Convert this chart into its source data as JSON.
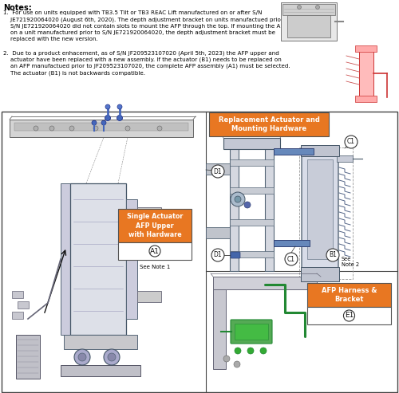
{
  "bg_color": "#ffffff",
  "orange_color": "#E87722",
  "notes_title": "Notes:",
  "note1_prefix": "1.",
  "note1_body": "For use on units equipped with TB3.5 Tilt or TB3 REAC Lift manufactured on or after S/N JE721920064020 (August 6th, 2020). The depth adjustment bracket on units manufactued prior to S/N JE721920064020 did not contain slots to mount the AFP through the top. If mounting the AFP on a unit manufactured prior to S/N JE721920064020, the depth adjustment bracket must be replaced with the new version.",
  "note2_prefix": "2.",
  "note2_body": "Due to a product enhacement, as of S/N JF209523107020 (April 5th, 2023) the AFP upper and actuator have been replaced with a new assembly. If the actuator (B1) needs to be replaced on an AFP manufactued prior to JF209523107020, the complete AFP assembly (A1) must be selected. The actuator (B1) is not backwards compatible.",
  "box1_title": "Single Actuator\nAFP Upper\nwith Hardware",
  "box1_label": "A1",
  "box1_note": "See Note 1",
  "box2_title": "Replacement Actuator and\nMounting Hardware",
  "box3_title": "AFP Harness &\nBracket",
  "box3_label": "E1",
  "text_color": "#000000",
  "blue_color": "#4466bb",
  "green_color": "#228833",
  "gray_light": "#d8d8d8",
  "gray_mid": "#b8b8b8",
  "gray_dark": "#888888",
  "blue_part": "#6688bb",
  "diagram_bg": "#f5f5f5"
}
